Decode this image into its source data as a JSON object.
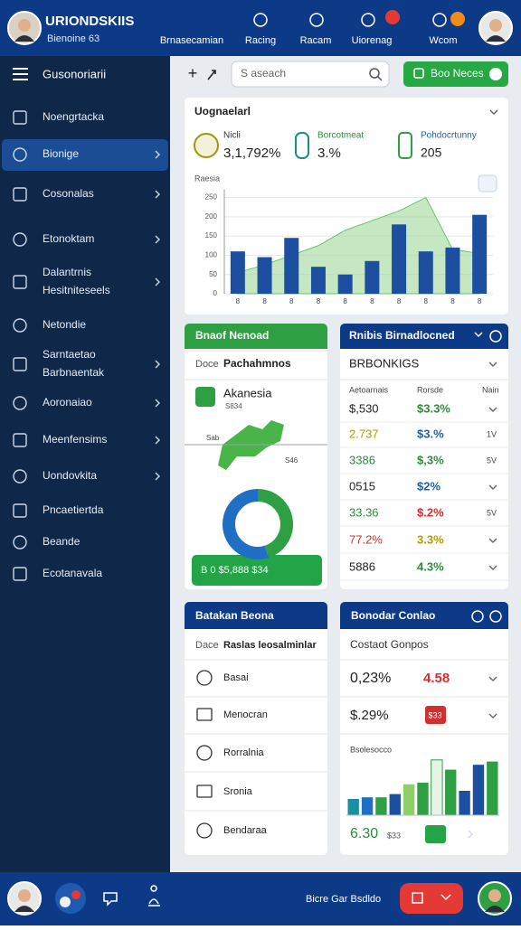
{
  "header": {
    "title": "URIONDSKIIS",
    "subtitle": "Bienoine 63",
    "nav": [
      "Brnasecamian",
      "Racing",
      "Racam",
      "Uiorenag",
      "Wcom"
    ]
  },
  "sidebar": {
    "menu": "Gusonoriarii",
    "items": [
      [
        "Noengrtacka"
      ],
      [
        "Bionige"
      ],
      [
        "Cosonalas"
      ],
      [
        "Etonoktam"
      ],
      [
        "Dalantrnis",
        "Hesitniteseels"
      ],
      [
        "Netondie"
      ],
      [
        "Sarntaetao",
        "Barbnaentak"
      ],
      [
        "Aoronaiao"
      ],
      [
        "Meenfensims"
      ],
      [
        "Uondovkita"
      ],
      [
        "Pncaetiertda"
      ],
      [
        "Beande"
      ],
      [
        "Ecotanavala"
      ]
    ]
  },
  "toolbar": {
    "search_placeholder": "S aseach",
    "button": "Boo Neces"
  },
  "overview": {
    "title": "Uognaelarl",
    "kpis": [
      {
        "label": "Nicli",
        "value": "3,1,792%"
      },
      {
        "label": "Borcotmeat",
        "value": "3.%"
      },
      {
        "label": "Pohdocrtunny",
        "value": "205"
      }
    ]
  },
  "region": {
    "title": "Bnaof Nenoad",
    "label": "Doce",
    "subtitle": "Pachahmnos",
    "place": "Akanesia",
    "place_sub": "S834",
    "map_labels": [
      "Sab",
      "S46"
    ],
    "button": "B 0 $5,888 $34"
  },
  "rankings": {
    "title": "Rnibis Birnadlocned",
    "select": "BRBONKIGS",
    "columns": [
      "Aetoarnais",
      "Rorsde",
      "Nain"
    ],
    "rows": [
      [
        "$,530",
        "$3.3%"
      ],
      [
        "2.737",
        "$3.%",
        "1V"
      ],
      [
        "3386",
        "$,3%",
        "5V"
      ],
      [
        "0515",
        "$2%"
      ],
      [
        "33.36",
        "$.2%",
        "5V"
      ],
      [
        "77.2%",
        "3.3%"
      ],
      [
        "5886",
        "4.3%"
      ]
    ]
  },
  "lists": {
    "title": "Batakan Beona",
    "label": "Dace",
    "subtitle": "Raslas leosalminlar",
    "items": [
      "Basai",
      "Menocran",
      "Rorralnia",
      "Sronia",
      "Bendaraa"
    ]
  },
  "contacts": {
    "title": "Bonodar Conlao",
    "subtitle": "Costaot Gonpos",
    "rows": [
      [
        "0,23%",
        "4.58"
      ],
      [
        "$.29%",
        "$33"
      ]
    ],
    "footer": [
      "6.30",
      "$33"
    ]
  },
  "footer": {
    "text": "Bicre Gar Bsdldo"
  },
  "chart_data": [
    {
      "type": "bar",
      "title": "Raesia",
      "categories": [
        "8",
        "8",
        "8",
        "8",
        "8",
        "8",
        "8",
        "8",
        "8",
        "8"
      ],
      "ylim": [
        0,
        270
      ],
      "yticks": [
        0,
        50,
        100,
        150,
        200,
        250
      ],
      "grid": true,
      "series": [
        {
          "type": "area",
          "color": "#9fd99a",
          "values": [
            55,
            75,
            100,
            125,
            165,
            190,
            215,
            250,
            115,
            105
          ]
        },
        {
          "type": "bar",
          "color": "#1c4fa0",
          "values": [
            110,
            95,
            145,
            70,
            50,
            85,
            180,
            110,
            120,
            205
          ]
        }
      ]
    },
    {
      "type": "pie",
      "values": [
        45,
        55
      ],
      "colors": [
        "#2ea043",
        "#1f6fc4"
      ]
    },
    {
      "type": "bar",
      "title": "Bsolesocco",
      "ylim": [
        0,
        80
      ],
      "values": [
        20,
        22,
        22,
        26,
        38,
        40,
        68,
        56,
        30,
        62,
        66
      ],
      "colors": [
        "#1a8fa0",
        "#1f6fc4",
        "#2ea043",
        "#1c4fa0",
        "#8fcf6a",
        "#2ea043",
        "#e8f3e8",
        "#2ea043",
        "#1c4fa0",
        "#1c4fa0",
        "#2ea043"
      ]
    }
  ]
}
